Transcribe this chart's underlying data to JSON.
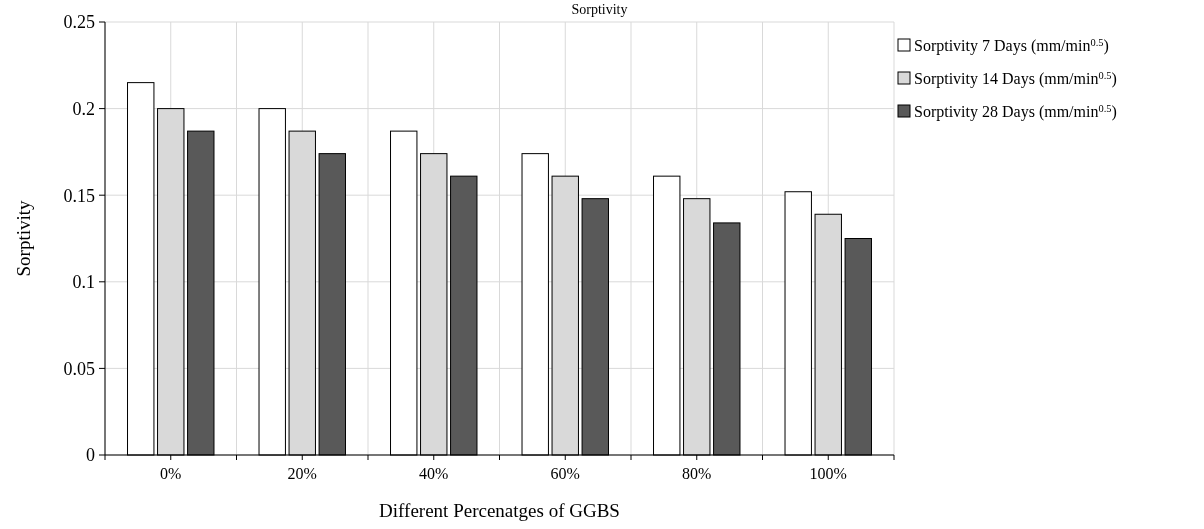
{
  "chart_data": {
    "type": "bar",
    "title": "Sorptivity",
    "xlabel": "Different Percenatges of GGBS",
    "ylabel": "Sorptivity",
    "categories": [
      "0%",
      "20%",
      "40%",
      "60%",
      "80%",
      "100%"
    ],
    "series": [
      {
        "name": "Sorptivity 7 Days (mm/min$^{0.5}$)",
        "color": "#ffffff",
        "values": [
          0.215,
          0.2,
          0.187,
          0.174,
          0.161,
          0.152
        ]
      },
      {
        "name": "Sorptivity 14 Days (mm/min$^{0.5}$)",
        "color": "#d9d9d9",
        "values": [
          0.2,
          0.187,
          0.174,
          0.161,
          0.148,
          0.139
        ]
      },
      {
        "name": "Sorptivity 28 Days (mm/min$^{0.5}$)",
        "color": "#595959",
        "values": [
          0.187,
          0.174,
          0.161,
          0.148,
          0.134,
          0.125
        ]
      }
    ],
    "ylim": [
      0,
      0.25
    ],
    "yticks": [
      0,
      0.05,
      0.1,
      0.15,
      0.2,
      0.25
    ],
    "grid": true,
    "legend": "top right"
  }
}
